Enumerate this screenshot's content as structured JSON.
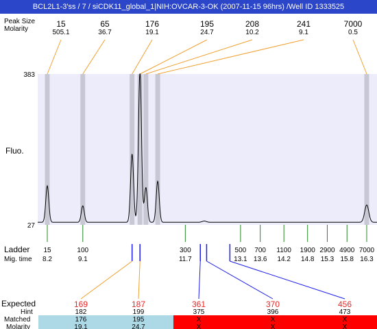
{
  "title": "BCL2L1-3'ss / 7 / siCDK11_global_1|NIH:OVCAR-3-OK (2007-11-15 96hrs) /Well ID 1333525",
  "labels": {
    "peak_size": "Peak Size",
    "molarity": "Molarity",
    "fluo": "Fluo.",
    "ladder": "Ladder",
    "mig_time": "Mig. time",
    "expected": "Expected",
    "hint": "Hint",
    "matched": "Matched",
    "molarity_bottom": "Molarity"
  },
  "colors": {
    "title_bg": "#2b46c8",
    "plot_bg": "#ececfb",
    "peak_band": "#c8c8d4",
    "leader": "#f0a030",
    "ladder_tick": "#228822",
    "marker": "#1a1aee",
    "expected_red": "#ee2222",
    "matched_ok": "#add8e6",
    "matched_bad": "#ff0000"
  },
  "chart_data": {
    "type": "line",
    "y_axis": {
      "min": 27,
      "max": 383,
      "ticks": [
        "27",
        "383"
      ],
      "label": "Fluo."
    },
    "peaks": [
      {
        "size": "15",
        "molarity": "505.1",
        "mig_time": 8.2,
        "height": 113
      },
      {
        "size": "65",
        "molarity": "36.7",
        "mig_time": 9.1,
        "height": 66
      },
      {
        "size": "176",
        "molarity": "19.1",
        "mig_time": 10.35,
        "height": 188
      },
      {
        "size": "195",
        "molarity": "24.7",
        "mig_time": 10.55,
        "height": 383
      },
      {
        "size": "208",
        "molarity": "10.2",
        "mig_time": 10.7,
        "height": 109
      },
      {
        "size": "241",
        "molarity": "9.1",
        "mig_time": 11.0,
        "height": 124
      },
      {
        "size": "7000",
        "molarity": "0.5",
        "mig_time": 16.3,
        "height": 68
      }
    ],
    "ladder": [
      {
        "size": "15",
        "mig_time": "8.2",
        "t": 8.2
      },
      {
        "size": "100",
        "mig_time": "9.1",
        "t": 9.1
      },
      {
        "size": "300",
        "mig_time": "11.7",
        "t": 11.7
      },
      {
        "size": "500",
        "mig_time": "13.1",
        "t": 13.1
      },
      {
        "size": "700",
        "mig_time": "13.6",
        "t": 13.6
      },
      {
        "size": "1100",
        "mig_time": "14.2",
        "t": 14.2
      },
      {
        "size": "1900",
        "mig_time": "14.8",
        "t": 14.8
      },
      {
        "size": "2900",
        "mig_time": "15.3",
        "t": 15.3
      },
      {
        "size": "4900",
        "mig_time": "15.8",
        "t": 15.8
      },
      {
        "size": "7000",
        "mig_time": "16.3",
        "t": 16.3
      }
    ],
    "expected": [
      {
        "expected": "169",
        "hint": "182",
        "matched": "176",
        "molarity": "19.1",
        "t": 10.35,
        "status": "matched"
      },
      {
        "expected": "187",
        "hint": "199",
        "matched": "195",
        "molarity": "24.7",
        "t": 10.55,
        "status": "matched"
      },
      {
        "expected": "361",
        "hint": "375",
        "matched": "X",
        "molarity": "X",
        "t": 12.08,
        "status": "missing"
      },
      {
        "expected": "370",
        "hint": "396",
        "matched": "X",
        "molarity": "X",
        "t": 12.24,
        "status": "missing"
      },
      {
        "expected": "456",
        "hint": "473",
        "matched": "X",
        "molarity": "X",
        "t": 12.83,
        "status": "missing"
      }
    ]
  }
}
